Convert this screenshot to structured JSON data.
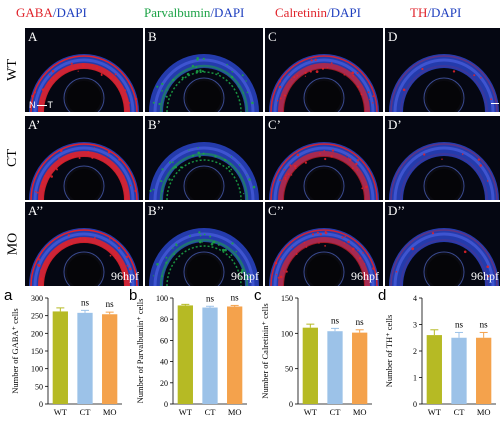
{
  "headers": [
    {
      "marker": "GABA",
      "counter": "/DAPI",
      "color": "red"
    },
    {
      "marker": "Parvalbumin",
      "counter": "/DAPI",
      "color": "green"
    },
    {
      "marker": "Calretinin",
      "counter": "/DAPI",
      "color": "red"
    },
    {
      "marker": "TH",
      "counter": "/DAPI",
      "color": "red"
    }
  ],
  "row_labels": [
    "WT",
    "CT",
    "MO"
  ],
  "panel_labels": [
    [
      "A",
      "B",
      "C",
      "D"
    ],
    [
      "A’",
      "B’",
      "C’",
      "D’"
    ],
    [
      "A’’",
      "B’’",
      "C’’",
      "D’’"
    ]
  ],
  "time_label": "96hpf",
  "orientation": {
    "n": "N",
    "t": "T"
  },
  "colors": {
    "red": "#e0222a",
    "green": "#1ca347",
    "blue": "#1f3fbf",
    "dapi": "#2a44c8",
    "wt_bar": "#b6ba24",
    "ct_bar": "#9cc2e8",
    "mo_bar": "#f4a24c"
  },
  "chart_data": [
    {
      "type": "bar",
      "panel": "a",
      "ylabel": "Number of GABA⁺ cells",
      "categories": [
        "WT",
        "CT",
        "MO"
      ],
      "values": [
        262,
        258,
        254
      ],
      "errors": [
        10,
        7,
        6
      ],
      "ylim": [
        0,
        300
      ],
      "yticks": [
        0,
        50,
        100,
        150,
        200,
        250,
        300
      ],
      "annotations": [
        "",
        "ns",
        "ns"
      ]
    },
    {
      "type": "bar",
      "panel": "b",
      "ylabel": "Number of Parvalbumin⁺ cells",
      "categories": [
        "WT",
        "CT",
        "MO"
      ],
      "values": [
        93,
        91,
        92
      ],
      "errors": [
        1,
        1.2,
        1
      ],
      "ylim": [
        0,
        100
      ],
      "yticks": [
        0,
        20,
        40,
        60,
        80,
        100
      ],
      "annotations": [
        "",
        "ns",
        "ns"
      ]
    },
    {
      "type": "bar",
      "panel": "c",
      "ylabel": "Number of Calretinin⁺ cells",
      "categories": [
        "WT",
        "CT",
        "MO"
      ],
      "values": [
        108,
        103,
        101
      ],
      "errors": [
        5,
        4,
        4
      ],
      "ylim": [
        0,
        150
      ],
      "yticks": [
        0,
        50,
        100,
        150
      ],
      "annotations": [
        "",
        "ns",
        "ns"
      ]
    },
    {
      "type": "bar",
      "panel": "d",
      "ylabel": "Number of TH⁺ cells",
      "categories": [
        "WT",
        "CT",
        "MO"
      ],
      "values": [
        2.6,
        2.5,
        2.5
      ],
      "errors": [
        0.2,
        0.2,
        0.2
      ],
      "ylim": [
        0,
        4
      ],
      "yticks": [
        0,
        1,
        2,
        3,
        4
      ],
      "annotations": [
        "",
        "ns",
        "ns"
      ]
    }
  ]
}
